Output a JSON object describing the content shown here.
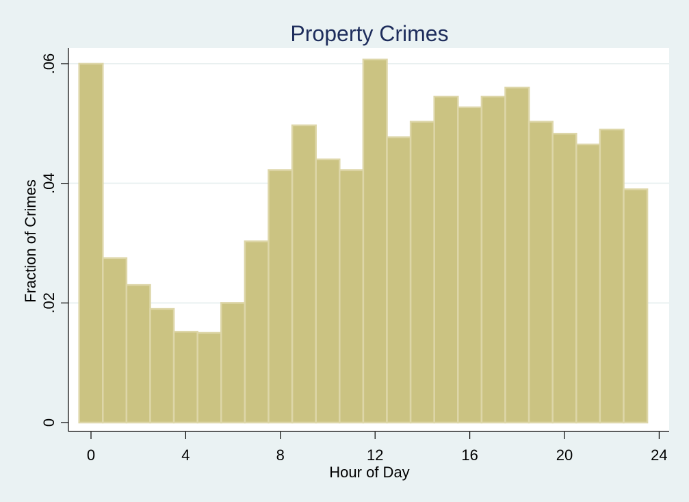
{
  "chart_data": {
    "type": "bar",
    "title": "Property Crimes",
    "xlabel": "Hour of Day",
    "ylabel": "Fraction of Crimes",
    "x": [
      0,
      1,
      2,
      3,
      4,
      5,
      6,
      7,
      8,
      9,
      10,
      11,
      12,
      13,
      14,
      15,
      16,
      17,
      18,
      19,
      20,
      21,
      22,
      23
    ],
    "values": [
      0.06,
      0.0275,
      0.023,
      0.019,
      0.0152,
      0.015,
      0.02,
      0.0303,
      0.0422,
      0.0497,
      0.044,
      0.0422,
      0.0607,
      0.0477,
      0.0503,
      0.0545,
      0.0527,
      0.0545,
      0.056,
      0.0503,
      0.0483,
      0.0465,
      0.049,
      0.039
    ],
    "xlim": [
      -0.5,
      24
    ],
    "ylim": [
      0,
      0.06
    ],
    "xticks": [
      0,
      4,
      8,
      12,
      16,
      20,
      24
    ],
    "xtick_labels": [
      "0",
      "4",
      "8",
      "12",
      "16",
      "20",
      "24"
    ],
    "yticks": [
      0,
      0.02,
      0.04,
      0.06
    ],
    "ytick_labels": [
      "0",
      ".02",
      ".04",
      ".06"
    ],
    "grid": true,
    "colors": {
      "background": "#eaf2f3",
      "plot_background": "#ffffff",
      "bar_fill": "#cbc382",
      "bar_stroke": "#ddd6a8",
      "gridline": "#e9f0f0",
      "axis": "#000000",
      "title": "#1e2d5c"
    }
  }
}
